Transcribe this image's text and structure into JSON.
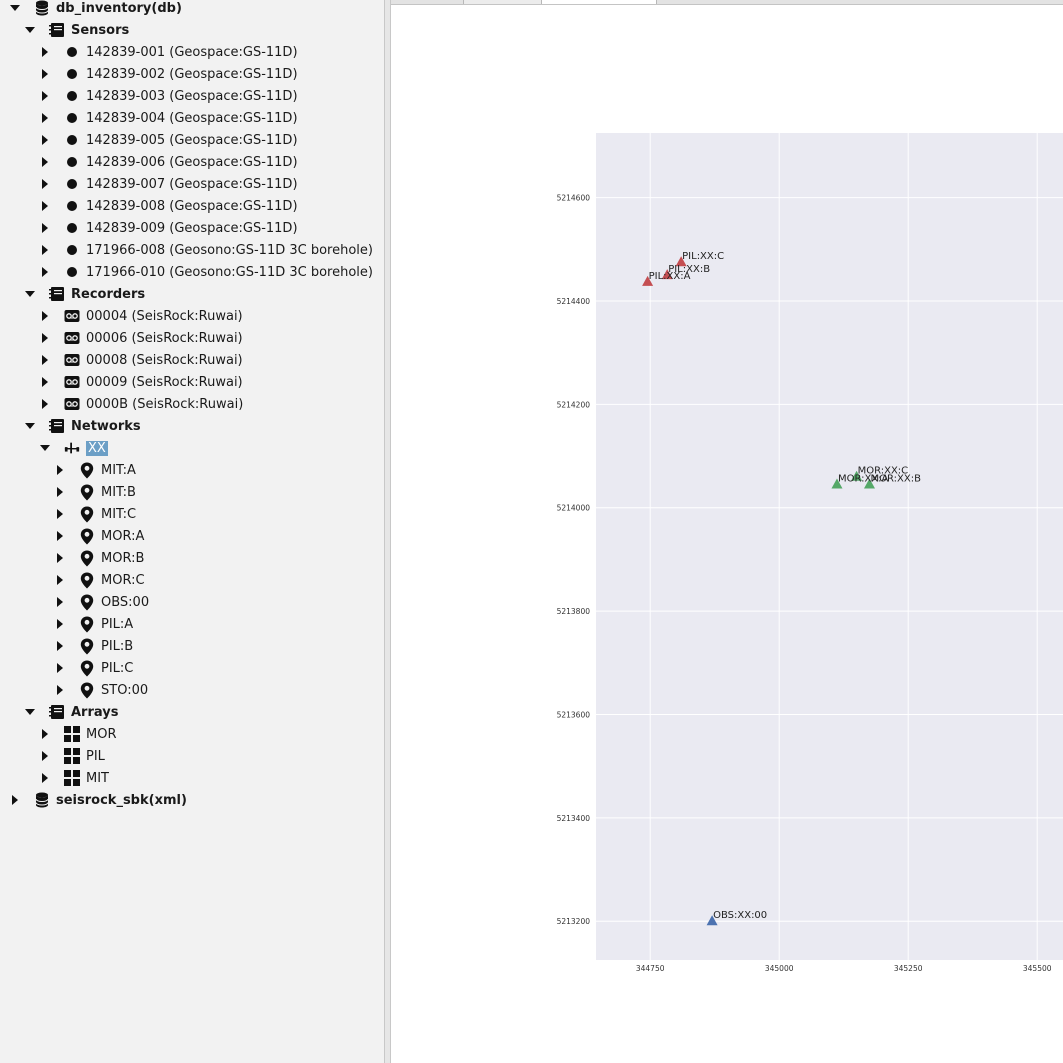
{
  "tree": {
    "root1": {
      "label": "db_inventory(db)",
      "icon": "database-icon"
    },
    "sensors": {
      "label": "Sensors",
      "items": [
        "142839-001 (Geospace:GS-11D)",
        "142839-002 (Geospace:GS-11D)",
        "142839-003 (Geospace:GS-11D)",
        "142839-004 (Geospace:GS-11D)",
        "142839-005 (Geospace:GS-11D)",
        "142839-006 (Geospace:GS-11D)",
        "142839-007 (Geospace:GS-11D)",
        "142839-008 (Geospace:GS-11D)",
        "142839-009 (Geospace:GS-11D)",
        "171966-008 (Geosono:GS-11D 3C borehole)",
        "171966-010 (Geosono:GS-11D 3C borehole)"
      ]
    },
    "recorders": {
      "label": "Recorders",
      "items": [
        "00004 (SeisRock:Ruwai)",
        "00006 (SeisRock:Ruwai)",
        "00008 (SeisRock:Ruwai)",
        "00009 (SeisRock:Ruwai)",
        "0000B (SeisRock:Ruwai)"
      ]
    },
    "networks": {
      "label": "Networks",
      "network": "XX",
      "stations": [
        "MIT:A",
        "MIT:B",
        "MIT:C",
        "MOR:A",
        "MOR:B",
        "MOR:C",
        "OBS:00",
        "PIL:A",
        "PIL:B",
        "PIL:C",
        "STO:00"
      ]
    },
    "arrays": {
      "label": "Arrays",
      "items": [
        "MOR",
        "PIL",
        "MIT"
      ]
    },
    "root2": {
      "label": "seisrock_sbk(xml)",
      "icon": "database-icon"
    }
  },
  "colors": {
    "selection": "#6c9fc6",
    "plot_bg": "#eaeaf2",
    "red": "#c44e52",
    "green": "#55a868",
    "blue": "#4c72b0"
  },
  "chart_data": {
    "type": "scatter",
    "title": "",
    "xlabel": "",
    "ylabel": "",
    "xlim": [
      344645,
      345550
    ],
    "ylim": [
      5213125,
      5214725
    ],
    "xticks": [
      344750,
      345000,
      345250,
      345500
    ],
    "yticks": [
      5213200,
      5213400,
      5213600,
      5213800,
      5214000,
      5214200,
      5214400,
      5214600
    ],
    "grid": true,
    "series": [
      {
        "color": "#c44e52",
        "marker": "triangle",
        "points": [
          {
            "x": 344745,
            "y": 5214437,
            "label": "PIL:XX:A"
          },
          {
            "x": 344783,
            "y": 5214450,
            "label": "PIL:XX:B"
          },
          {
            "x": 344810,
            "y": 5214475,
            "label": "PIL:XX:C"
          }
        ]
      },
      {
        "color": "#55a868",
        "marker": "triangle",
        "points": [
          {
            "x": 345112,
            "y": 5214045,
            "label": "MOR:XX:A"
          },
          {
            "x": 345175,
            "y": 5214045,
            "label": "MOR:XX:B"
          },
          {
            "x": 345150,
            "y": 5214060,
            "label": "MOR:XX:C"
          }
        ]
      },
      {
        "color": "#4c72b0",
        "marker": "triangle",
        "points": [
          {
            "x": 344870,
            "y": 5213200,
            "label": "OBS:XX:00"
          }
        ]
      }
    ]
  }
}
